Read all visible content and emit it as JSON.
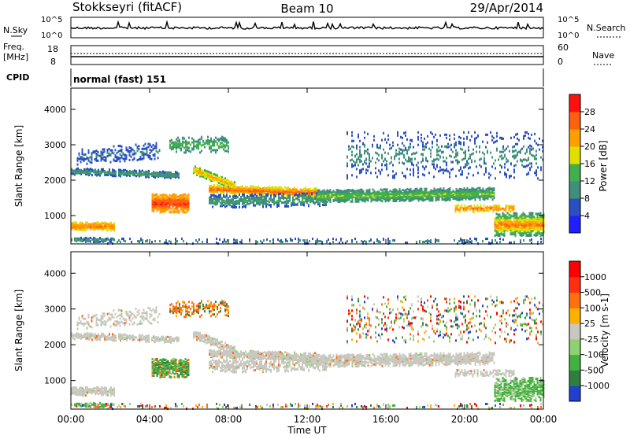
{
  "header": {
    "station": "Stokkseyri (fitACF)",
    "beam": "Beam 10",
    "date": "29/Apr/2014"
  },
  "strip": {
    "nsky_label": "N.Sky",
    "nsearch_label": "N.Search",
    "nsky_ticks": [
      "10^5",
      "10^0"
    ],
    "freq_label_1": "Freq.",
    "freq_label_2": "[MHz]",
    "freq_ticks": [
      "18",
      "8"
    ],
    "nave_label": "Nave",
    "nave_ticks": [
      "60",
      "0"
    ],
    "cpid_label": "CPID",
    "cpid_value": "normal (fast) 151"
  },
  "chart_data": [
    {
      "type": "heatmap",
      "name": "power",
      "ylabel": "Slant Range [km]",
      "ylim": [
        200,
        4600
      ],
      "xlim": [
        0,
        24
      ],
      "yticks": [
        1000,
        2000,
        3000,
        4000
      ],
      "colorbar": {
        "label": "Power [dB]",
        "ticks": [
          "4",
          "8",
          "12",
          "16",
          "20",
          "24",
          "28"
        ],
        "range": [
          0,
          32
        ],
        "colors": [
          "#1f1fff",
          "#2a4fc0",
          "#3f8f7a",
          "#41b04c",
          "#e0e000",
          "#ffa000",
          "#ff6010",
          "#ff1010"
        ]
      }
    },
    {
      "type": "heatmap",
      "name": "velocity",
      "ylabel": "Slant Range [km]",
      "ylim": [
        200,
        4600
      ],
      "xlim": [
        0,
        24
      ],
      "yticks": [
        1000,
        2000,
        3000,
        4000
      ],
      "colorbar": {
        "label": "Velocity [m s-1]",
        "ticks": [
          "1000",
          "500",
          "100",
          "25",
          "-25",
          "-100",
          "-500",
          "-1000"
        ],
        "colors": [
          "#2040d0",
          "#2f7f3f",
          "#42b042",
          "#8fd070",
          "#c8c8c0",
          "#ffb000",
          "#ff7010",
          "#ff3010",
          "#ff0000"
        ]
      }
    }
  ],
  "x_axis": {
    "label": "Time UT",
    "ticks": [
      "00:00",
      "04:00",
      "08:00",
      "12:00",
      "16:00",
      "20:00",
      "00:00"
    ]
  }
}
